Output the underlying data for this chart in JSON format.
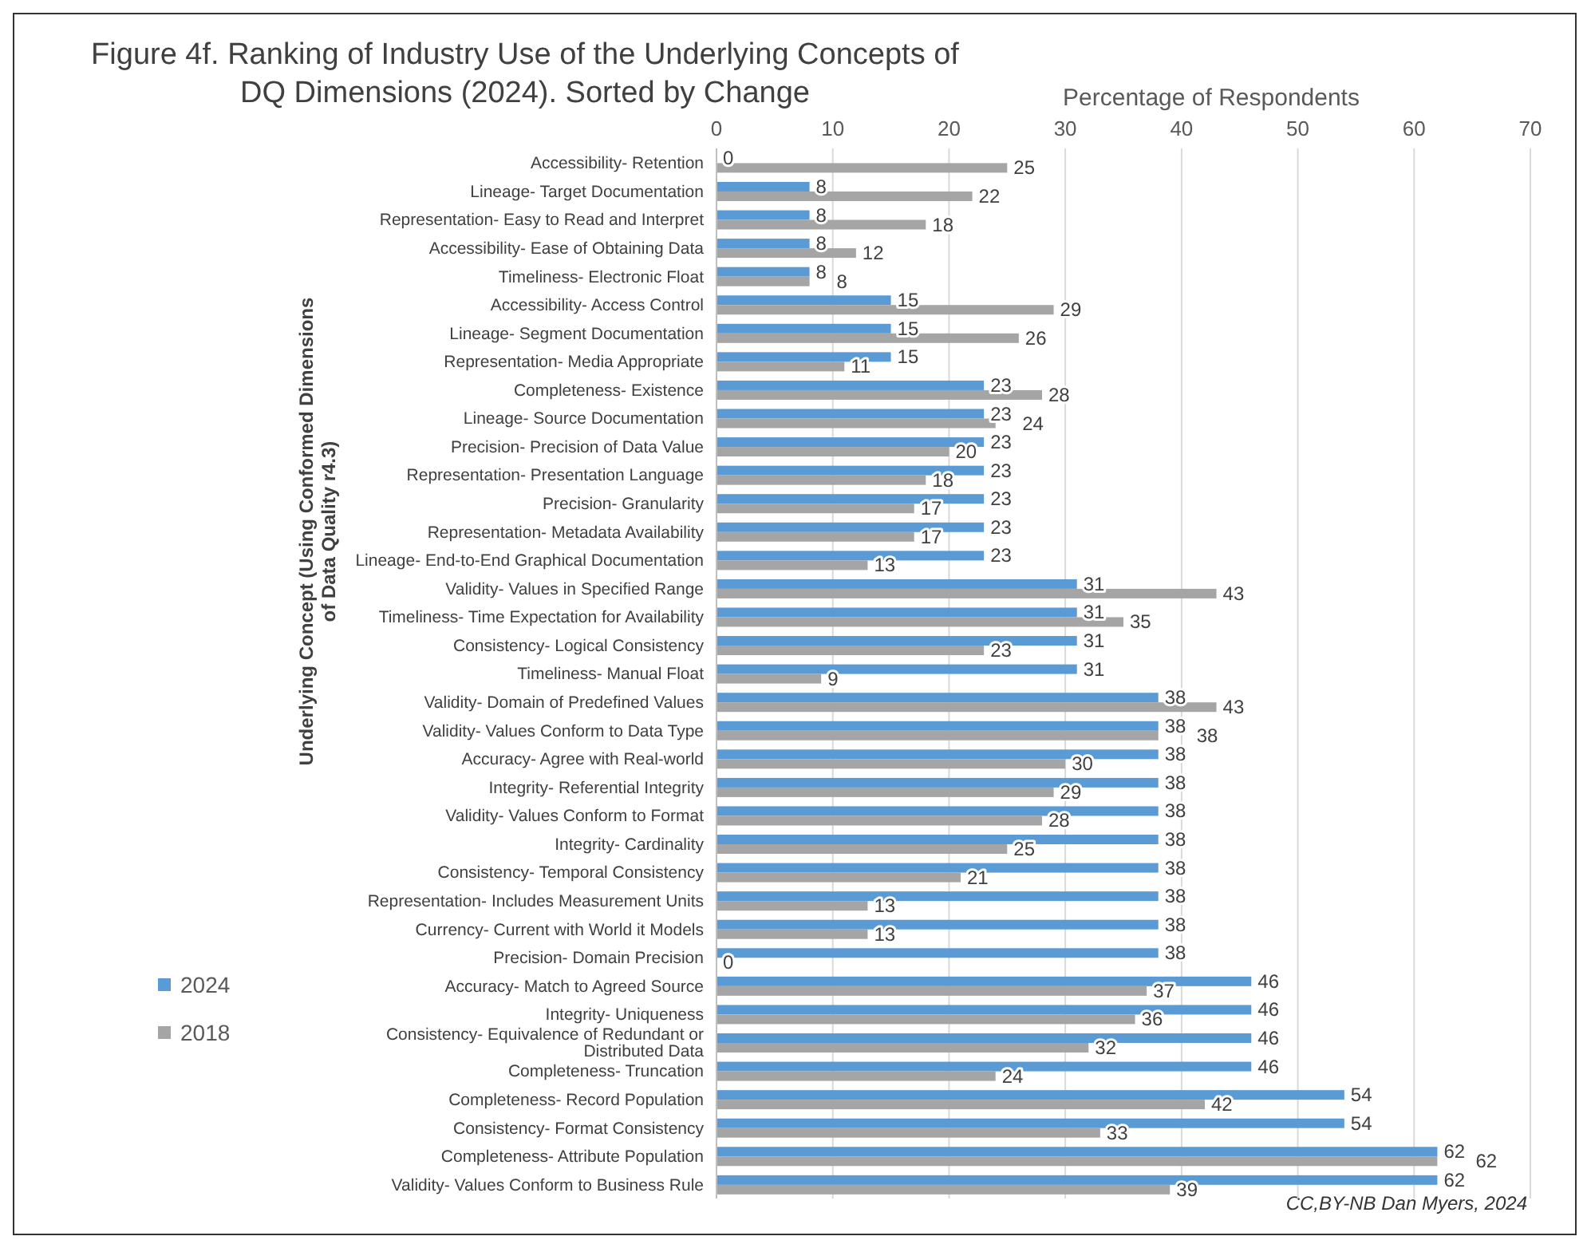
{
  "chart_data": {
    "type": "bar",
    "orientation": "horizontal",
    "title": "Figure 4f. Ranking of Industry Use of the Underlying Concepts of DQ Dimensions (2024). Sorted by Change",
    "xlabel": "Percentage of Respondents",
    "ylabel": "Underlying Concept (Using Conformed Dimensions of Data Quality r4.3)",
    "annotations": [
      "CC,BY-NB Dan Myers, 2024"
    ],
    "categories": [
      "Accessibility- Retention",
      "Lineage- Target Documentation",
      "Representation- Easy to Read and Interpret",
      "Accessibility- Ease of Obtaining Data",
      "Timeliness- Electronic Float",
      "Accessibility- Access Control",
      "Lineage- Segment Documentation",
      "Representation- Media Appropriate",
      "Completeness- Existence",
      "Lineage- Source Documentation",
      "Precision- Precision of Data Value",
      "Representation- Presentation Language",
      "Precision- Granularity",
      "Representation- Metadata Availability",
      "Lineage- End-to-End Graphical Documentation",
      "Validity- Values in Specified Range",
      "Timeliness- Time Expectation for Availability",
      "Consistency- Logical Consistency",
      "Timeliness- Manual Float",
      "Validity- Domain of Predefined Values",
      "Validity- Values Conform to Data Type",
      "Accuracy- Agree with Real-world",
      "Integrity- Referential Integrity",
      "Validity- Values Conform to Format",
      "Integrity- Cardinality",
      "Consistency- Temporal Consistency",
      "Representation- Includes Measurement Units",
      "Currency- Current with World it Models",
      "Precision- Domain Precision",
      "Accuracy- Match to Agreed Source",
      "Integrity- Uniqueness",
      "Consistency- Equivalence of Redundant or Distributed Data",
      "Completeness- Truncation",
      "Completeness- Record Population",
      "Consistency- Format Consistency",
      "Completeness- Attribute Population",
      "Validity- Values Conform to Business Rule"
    ],
    "series": [
      {
        "name": "2024",
        "color": "#5b9bd5",
        "values": [
          0,
          8,
          8,
          8,
          8,
          15,
          15,
          15,
          23,
          23,
          23,
          23,
          23,
          23,
          23,
          31,
          31,
          31,
          31,
          38,
          38,
          38,
          38,
          38,
          38,
          38,
          38,
          38,
          38,
          46,
          46,
          46,
          46,
          54,
          54,
          62,
          62
        ]
      },
      {
        "name": "2018",
        "color": "#a5a5a5",
        "values": [
          25,
          22,
          18,
          12,
          8,
          29,
          26,
          11,
          28,
          24,
          20,
          18,
          17,
          17,
          13,
          43,
          35,
          23,
          9,
          43,
          38,
          30,
          29,
          28,
          25,
          21,
          13,
          13,
          0,
          37,
          36,
          32,
          24,
          42,
          33,
          62,
          39
        ]
      }
    ],
    "xlim": [
      0,
      70
    ],
    "xticks": [
      0,
      10,
      20,
      30,
      40,
      50,
      60,
      70
    ],
    "grid": "x",
    "legend": "left",
    "data_labels": true
  }
}
